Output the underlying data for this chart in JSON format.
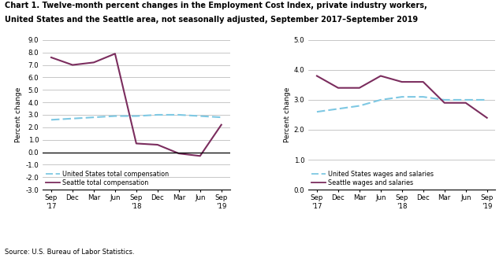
{
  "title_line1": "Chart 1. Twelve-month percent changes in the Employment Cost Index, private industry workers,",
  "title_line2": "United States and the Seattle area, not seasonally adjusted, September 2017–September 2019",
  "ylabel": "Percent change",
  "source": "Source: U.S. Bureau of Labor Statistics.",
  "x_labels": [
    "Sep\n'17",
    "Dec",
    "Mar",
    "Jun",
    "Sep\n'18",
    "Dec",
    "Mar",
    "Jun",
    "Sep\n'19"
  ],
  "x_tick_positions": [
    0,
    1,
    2,
    3,
    4,
    5,
    6,
    7,
    8
  ],
  "left_us_total_comp": [
    2.6,
    2.7,
    2.8,
    2.9,
    2.9,
    3.0,
    3.0,
    2.9,
    2.8
  ],
  "left_seattle_total_comp": [
    7.6,
    7.0,
    7.2,
    7.9,
    0.7,
    0.6,
    -0.1,
    -0.3,
    2.2
  ],
  "right_us_wages_salaries": [
    2.6,
    2.7,
    2.8,
    3.0,
    3.1,
    3.1,
    3.0,
    3.0,
    3.0
  ],
  "right_seattle_wages_salaries": [
    3.8,
    3.4,
    3.4,
    3.8,
    3.6,
    3.6,
    2.9,
    2.9,
    2.4
  ],
  "left_ylim": [
    -3.0,
    9.0
  ],
  "left_yticks": [
    -3.0,
    -2.0,
    -1.0,
    0.0,
    1.0,
    2.0,
    3.0,
    4.0,
    5.0,
    6.0,
    7.0,
    8.0,
    9.0
  ],
  "right_ylim": [
    0.0,
    5.0
  ],
  "right_yticks": [
    0.0,
    1.0,
    2.0,
    3.0,
    4.0,
    5.0
  ],
  "us_color": "#7ec8e3",
  "seattle_color": "#7b2d5e",
  "line_width": 1.5,
  "grid_color": "#b0b0b0",
  "background_color": "#ffffff",
  "legend_us_total": "United States total compensation",
  "legend_seattle_total": "Seattle total compensation",
  "legend_us_wages": "United States wages and salaries",
  "legend_seattle_wages": "Seattle wages and salaries",
  "title_fontsize": 7.0,
  "ylabel_fontsize": 6.5,
  "tick_fontsize": 6.2,
  "legend_fontsize": 5.8,
  "source_fontsize": 6.0
}
